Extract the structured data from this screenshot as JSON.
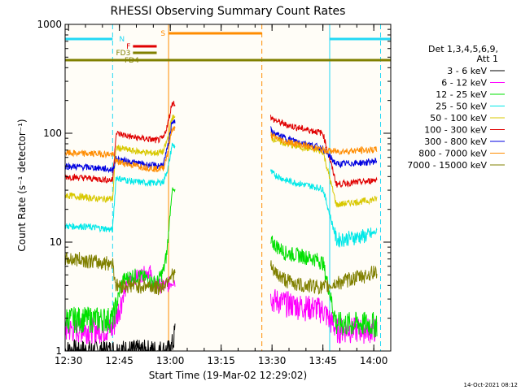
{
  "footer": {
    "timestamp": "14-Oct-2021 08:12"
  },
  "colors": {
    "background": "#fffdf7",
    "axis": "#000000",
    "N": "#22d8f4",
    "S": "#ff8c00",
    "F": "#e00000",
    "FD3": "#808000",
    "FD4": "#808000"
  },
  "chart_data": {
    "type": "line",
    "title": "RHESSI Observing Summary Count Rates",
    "xlabel": "Start Time (19-Mar-02 12:29:02)",
    "ylabel": "Count Rate (s⁻¹ detector⁻¹)",
    "x_unit": "minutes since 12:29:02",
    "xlim": [
      0,
      96
    ],
    "ylim": [
      1,
      1000
    ],
    "y_scale": "log",
    "x_ticks": [
      {
        "x": 1,
        "label": "12:30"
      },
      {
        "x": 16,
        "label": "12:45"
      },
      {
        "x": 31,
        "label": "13:00"
      },
      {
        "x": 46,
        "label": "13:15"
      },
      {
        "x": 61,
        "label": "13:30"
      },
      {
        "x": 76,
        "label": "13:45"
      },
      {
        "x": 91,
        "label": "14:00"
      }
    ],
    "y_ticks": [
      {
        "y": 1,
        "label": "1"
      },
      {
        "y": 10,
        "label": "10"
      },
      {
        "y": 100,
        "label": "100"
      },
      {
        "y": 1000,
        "label": "1000"
      }
    ],
    "legend": {
      "placement": "right",
      "header": [
        "Det 1,3,4,5,6,9,",
        "Att 1"
      ]
    },
    "series": [
      {
        "name": "3 - 6 keV",
        "color": "#000000",
        "x": [
          0,
          14,
          15.5,
          25,
          29,
          31,
          31.8,
          32.5
        ],
        "y": [
          1,
          1,
          1,
          1,
          1,
          1,
          1.2,
          1.6
        ]
      },
      {
        "name": "6 - 12 keV",
        "color": "#ff00ff",
        "x": [
          0,
          13,
          14,
          17,
          19,
          22,
          25,
          26,
          30,
          31.8,
          60.5,
          61,
          65,
          70,
          74,
          76,
          80,
          84,
          89,
          92
        ],
        "y": [
          1.6,
          1.6,
          1.6,
          3.2,
          4.5,
          5,
          5.5,
          4,
          4,
          4.5,
          3.2,
          3,
          2.8,
          2.6,
          2.5,
          2.4,
          1.6,
          1.6,
          1.6,
          1.6
        ]
      },
      {
        "name": "12 - 25 keV",
        "color": "#00e000",
        "x": [
          0,
          13,
          14,
          17,
          20,
          23,
          25,
          27,
          29,
          30,
          31.5,
          60.5,
          61,
          65,
          70,
          74,
          76,
          80,
          84,
          89,
          92
        ],
        "y": [
          2,
          2,
          2,
          4.5,
          5,
          4.8,
          4.5,
          4.2,
          5.5,
          8,
          30,
          9.5,
          10,
          8,
          7.5,
          7,
          6.5,
          1.8,
          1.8,
          1.8,
          1.8
        ]
      },
      {
        "name": "25 - 50 keV",
        "color": "#00e8e8",
        "x": [
          0,
          5,
          10,
          14,
          15,
          20,
          25,
          27,
          29,
          30.5,
          31.5,
          60.5,
          61,
          65,
          70,
          74,
          76,
          80,
          84,
          89,
          92
        ],
        "y": [
          14,
          14,
          13.5,
          13,
          39,
          36,
          35,
          35,
          36,
          50,
          78,
          45,
          43,
          37,
          34,
          32,
          31,
          10.5,
          11,
          11.5,
          12.5
        ]
      },
      {
        "name": "50 - 100 keV",
        "color": "#d8c800",
        "x": [
          0,
          5,
          10,
          14,
          15,
          20,
          25,
          27,
          29,
          30.5,
          31.5,
          60.5,
          61,
          65,
          70,
          74,
          76,
          80,
          84,
          89,
          92
        ],
        "y": [
          27,
          26,
          25,
          25,
          74,
          69,
          66,
          66,
          68,
          95,
          140,
          95,
          90,
          80,
          74,
          70,
          68,
          22,
          23,
          24,
          25
        ]
      },
      {
        "name": "100 - 300 keV",
        "color": "#e00000",
        "x": [
          0,
          5,
          10,
          14,
          15,
          20,
          25,
          27,
          29,
          30.5,
          31.5,
          60.5,
          61,
          65,
          70,
          74,
          76,
          80,
          84,
          89,
          92
        ],
        "y": [
          40,
          39,
          38,
          37,
          100,
          92,
          88,
          86,
          90,
          130,
          190,
          145,
          135,
          120,
          110,
          104,
          100,
          34,
          35,
          36,
          38
        ]
      },
      {
        "name": "300 - 800 keV",
        "color": "#0000e0",
        "x": [
          0,
          5,
          10,
          14,
          15,
          20,
          25,
          27,
          29,
          30.5,
          31.5,
          60.5,
          61,
          65,
          70,
          74,
          76,
          80,
          84,
          89,
          92
        ],
        "y": [
          50,
          49,
          48,
          46,
          58,
          54,
          51,
          50,
          52,
          80,
          130,
          110,
          102,
          90,
          82,
          76,
          72,
          52,
          53,
          54,
          56
        ]
      },
      {
        "name": "800 - 7000 keV",
        "color": "#ff8c00",
        "x": [
          0,
          5,
          10,
          14,
          15,
          20,
          25,
          27,
          29,
          30.5,
          31.5,
          60.5,
          61,
          65,
          70,
          74,
          76,
          80,
          84,
          89,
          92
        ],
        "y": [
          66,
          65,
          65,
          64,
          55,
          51,
          48,
          47,
          48,
          72,
          110,
          100,
          94,
          84,
          78,
          73,
          70,
          68,
          69,
          70,
          71
        ]
      },
      {
        "name": "7000 - 15000 keV",
        "color": "#808000",
        "x": [
          0,
          5,
          10,
          14,
          15,
          20,
          25,
          27,
          29,
          31,
          60.5,
          61,
          65,
          70,
          74,
          76,
          80,
          84,
          89,
          92
        ],
        "y": [
          7,
          7,
          6.5,
          6.5,
          4,
          4,
          4,
          3.8,
          4,
          5,
          6.5,
          5.5,
          4.5,
          4,
          4,
          3.8,
          4.2,
          4.6,
          5,
          5.5
        ]
      }
    ],
    "intervals": [
      {
        "flag": "N",
        "label": "N",
        "color": "#22d8f4",
        "x": [
          0,
          14
        ]
      },
      {
        "flag": "N",
        "label": "",
        "color": "#22d8f4",
        "x": [
          78,
          96
        ]
      },
      {
        "flag": "S",
        "label": "S",
        "color": "#ff8c00",
        "x": [
          30.5,
          58
        ]
      },
      {
        "flag": "F",
        "label": "F",
        "color": "#e00000",
        "x": [
          20,
          27
        ]
      },
      {
        "flag": "FD3",
        "label": "FD3",
        "color": "#808000",
        "x": [
          20,
          27
        ]
      },
      {
        "flag": "FD4",
        "label": "FD4",
        "color": "#808000",
        "x": [
          0,
          96
        ]
      }
    ],
    "vertical_markers": [
      {
        "x": 14,
        "color": "#22d8f4",
        "style": "dashed"
      },
      {
        "x": 30.5,
        "color": "#ff8c00",
        "style": "solid"
      },
      {
        "x": 58,
        "color": "#ff8c00",
        "style": "dashed"
      },
      {
        "x": 78,
        "color": "#22d8f4",
        "style": "solid"
      },
      {
        "x": 93,
        "color": "#22d8f4",
        "style": "dashed"
      }
    ],
    "gaps": [
      [
        32.5,
        60.5
      ]
    ]
  }
}
